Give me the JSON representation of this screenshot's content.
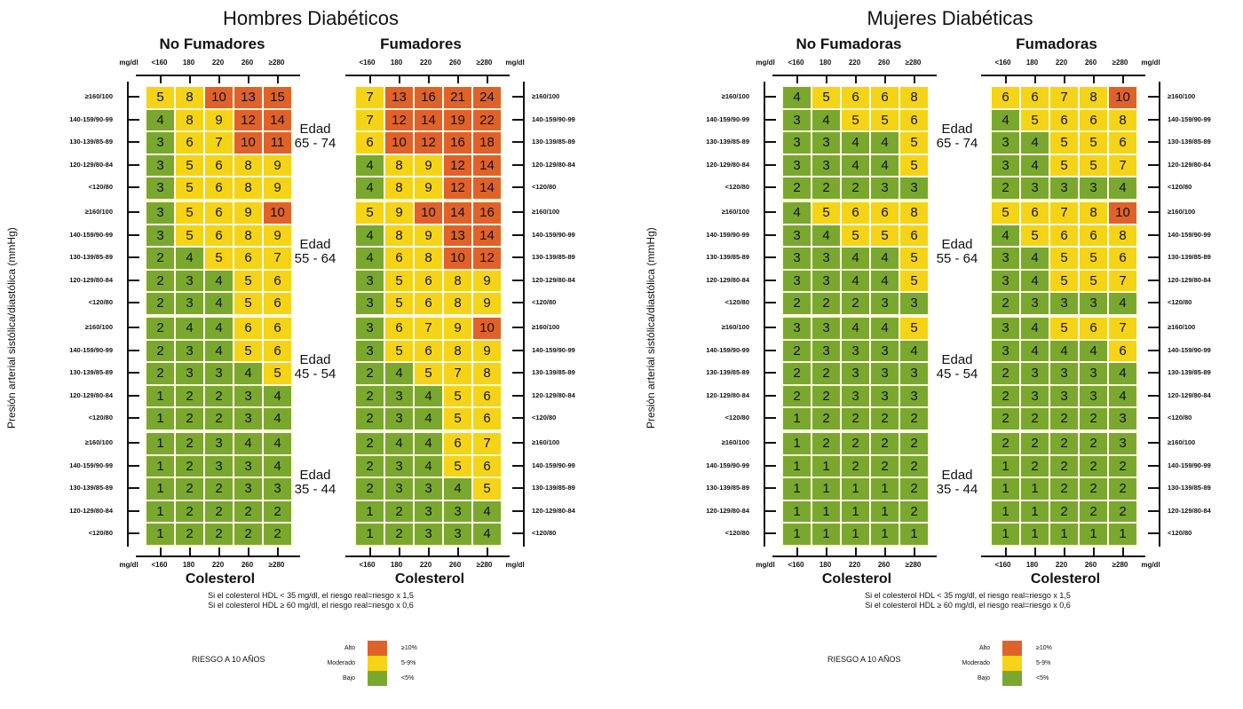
{
  "colors": {
    "high": "#e0622a",
    "moderate": "#f5d417",
    "low": "#7aa82e"
  },
  "y_axis_label": "Presión arterial sistólica/diastólica (mmHg)",
  "row_labels": [
    "≥160/100",
    "140-159/90-99",
    "130-139/85-89",
    "120-129/80-84",
    "<120/80"
  ],
  "col_labels": [
    "<160",
    "180",
    "220",
    "260",
    "≥280"
  ],
  "unit": "mg/dl",
  "x_title": "Colesterol",
  "notes": [
    "Si el colesterol HDL < 35 mg/dl, el riesgo real=riesgo x 1,5",
    "Si el colesterol HDL ≥ 60 mg/dl, el riesgo real=riesgo x 0,6"
  ],
  "legend": {
    "title": "RIESGO A 10 AÑOS",
    "items": [
      {
        "label": "Alto",
        "range": "≥10%",
        "level": "high"
      },
      {
        "label": "Moderado",
        "range": "5-9%",
        "level": "moderate"
      },
      {
        "label": "Bajo",
        "range": "<5%",
        "level": "low"
      }
    ]
  },
  "age_groups": [
    {
      "label": "Edad",
      "range": "65 - 74"
    },
    {
      "label": "Edad",
      "range": "55 - 64"
    },
    {
      "label": "Edad",
      "range": "45 - 54"
    },
    {
      "label": "Edad",
      "range": "35 - 44"
    }
  ],
  "panels": [
    {
      "title": "Hombres Diabéticos",
      "left": "No Fumadores",
      "right": "Fumadores"
    },
    {
      "title": "Mujeres Diabéticas",
      "left": "No Fumadoras",
      "right": "Fumadoras"
    }
  ],
  "chart_data": [
    {
      "type": "heatmap",
      "title": "Hombres Diabéticos - No Fumadores",
      "xlabel": "Colesterol (mg/dl)",
      "ylabel": "Presión arterial sistólica/diastólica (mmHg)",
      "groups": [
        {
          "age": "65 - 74",
          "values": [
            [
              5,
              8,
              10,
              13,
              15
            ],
            [
              4,
              8,
              9,
              12,
              14
            ],
            [
              3,
              6,
              7,
              10,
              11
            ],
            [
              3,
              5,
              6,
              8,
              9
            ],
            [
              3,
              5,
              6,
              8,
              9
            ]
          ]
        },
        {
          "age": "55 - 64",
          "values": [
            [
              3,
              5,
              6,
              9,
              10
            ],
            [
              3,
              5,
              6,
              8,
              9
            ],
            [
              2,
              4,
              5,
              6,
              7
            ],
            [
              2,
              3,
              4,
              5,
              6
            ],
            [
              2,
              3,
              4,
              5,
              6
            ]
          ]
        },
        {
          "age": "45 - 54",
          "values": [
            [
              2,
              4,
              4,
              6,
              6
            ],
            [
              2,
              3,
              4,
              5,
              6
            ],
            [
              2,
              3,
              3,
              4,
              5
            ],
            [
              1,
              2,
              2,
              3,
              4
            ],
            [
              1,
              2,
              2,
              3,
              4
            ]
          ]
        },
        {
          "age": "35 - 44",
          "values": [
            [
              1,
              2,
              3,
              4,
              4
            ],
            [
              1,
              2,
              3,
              3,
              4
            ],
            [
              1,
              2,
              2,
              3,
              3
            ],
            [
              1,
              2,
              2,
              2,
              2
            ],
            [
              1,
              2,
              2,
              2,
              2
            ]
          ]
        }
      ]
    },
    {
      "type": "heatmap",
      "title": "Hombres Diabéticos - Fumadores",
      "xlabel": "Colesterol (mg/dl)",
      "ylabel": "Presión arterial sistólica/diastólica (mmHg)",
      "groups": [
        {
          "age": "65 - 74",
          "values": [
            [
              7,
              13,
              16,
              21,
              24
            ],
            [
              7,
              12,
              14,
              19,
              22
            ],
            [
              6,
              10,
              12,
              16,
              18
            ],
            [
              4,
              8,
              9,
              12,
              14
            ],
            [
              4,
              8,
              9,
              12,
              14
            ]
          ]
        },
        {
          "age": "55 - 64",
          "values": [
            [
              5,
              9,
              10,
              14,
              16
            ],
            [
              4,
              8,
              9,
              13,
              14
            ],
            [
              4,
              6,
              8,
              10,
              12
            ],
            [
              3,
              5,
              6,
              8,
              9
            ],
            [
              3,
              5,
              6,
              8,
              9
            ]
          ]
        },
        {
          "age": "45 - 54",
          "values": [
            [
              3,
              6,
              7,
              9,
              10
            ],
            [
              3,
              5,
              6,
              8,
              9
            ],
            [
              2,
              4,
              5,
              7,
              8
            ],
            [
              2,
              3,
              4,
              5,
              6
            ],
            [
              2,
              3,
              4,
              5,
              6
            ]
          ]
        },
        {
          "age": "35 - 44",
          "values": [
            [
              2,
              4,
              4,
              6,
              7
            ],
            [
              2,
              3,
              4,
              5,
              6
            ],
            [
              2,
              3,
              3,
              4,
              5
            ],
            [
              1,
              2,
              3,
              3,
              4
            ],
            [
              1,
              2,
              3,
              3,
              4
            ]
          ]
        }
      ]
    },
    {
      "type": "heatmap",
      "title": "Mujeres Diabéticas - No Fumadoras",
      "xlabel": "Colesterol (mg/dl)",
      "ylabel": "Presión arterial sistólica/diastólica (mmHg)",
      "groups": [
        {
          "age": "65 - 74",
          "values": [
            [
              4,
              5,
              6,
              6,
              8
            ],
            [
              3,
              4,
              5,
              5,
              6
            ],
            [
              3,
              3,
              4,
              4,
              5
            ],
            [
              3,
              3,
              4,
              4,
              5
            ],
            [
              2,
              2,
              2,
              3,
              3
            ]
          ]
        },
        {
          "age": "55 - 64",
          "values": [
            [
              4,
              5,
              6,
              6,
              8
            ],
            [
              3,
              4,
              5,
              5,
              6
            ],
            [
              3,
              3,
              4,
              4,
              5
            ],
            [
              3,
              3,
              4,
              4,
              5
            ],
            [
              2,
              2,
              2,
              3,
              3
            ]
          ]
        },
        {
          "age": "45 - 54",
          "values": [
            [
              3,
              3,
              4,
              4,
              5
            ],
            [
              2,
              3,
              3,
              3,
              4
            ],
            [
              2,
              2,
              3,
              3,
              3
            ],
            [
              2,
              2,
              3,
              3,
              3
            ],
            [
              1,
              2,
              2,
              2,
              2
            ]
          ]
        },
        {
          "age": "35 - 44",
          "values": [
            [
              1,
              2,
              2,
              2,
              2
            ],
            [
              1,
              1,
              2,
              2,
              2
            ],
            [
              1,
              1,
              1,
              1,
              2
            ],
            [
              1,
              1,
              1,
              1,
              2
            ],
            [
              1,
              1,
              1,
              1,
              1
            ]
          ]
        }
      ]
    },
    {
      "type": "heatmap",
      "title": "Mujeres Diabéticas - Fumadoras",
      "xlabel": "Colesterol (mg/dl)",
      "ylabel": "Presión arterial sistólica/diastólica (mmHg)",
      "groups": [
        {
          "age": "65 - 74",
          "values": [
            [
              6,
              6,
              7,
              8,
              10
            ],
            [
              4,
              5,
              6,
              6,
              8
            ],
            [
              3,
              4,
              5,
              5,
              6
            ],
            [
              3,
              4,
              5,
              5,
              7
            ],
            [
              2,
              3,
              3,
              3,
              4
            ]
          ]
        },
        {
          "age": "55 - 64",
          "values": [
            [
              5,
              6,
              7,
              8,
              10
            ],
            [
              4,
              5,
              6,
              6,
              8
            ],
            [
              3,
              4,
              5,
              5,
              6
            ],
            [
              3,
              4,
              5,
              5,
              7
            ],
            [
              2,
              3,
              3,
              3,
              4
            ]
          ]
        },
        {
          "age": "45 - 54",
          "values": [
            [
              3,
              4,
              5,
              6,
              7
            ],
            [
              3,
              4,
              4,
              4,
              6
            ],
            [
              2,
              3,
              3,
              3,
              4
            ],
            [
              2,
              3,
              3,
              3,
              4
            ],
            [
              2,
              2,
              2,
              2,
              3
            ]
          ]
        },
        {
          "age": "35 - 44",
          "values": [
            [
              2,
              2,
              2,
              2,
              3
            ],
            [
              1,
              2,
              2,
              2,
              2
            ],
            [
              1,
              1,
              2,
              2,
              2
            ],
            [
              1,
              1,
              2,
              2,
              2
            ],
            [
              1,
              1,
              1,
              1,
              1
            ]
          ]
        }
      ]
    }
  ]
}
